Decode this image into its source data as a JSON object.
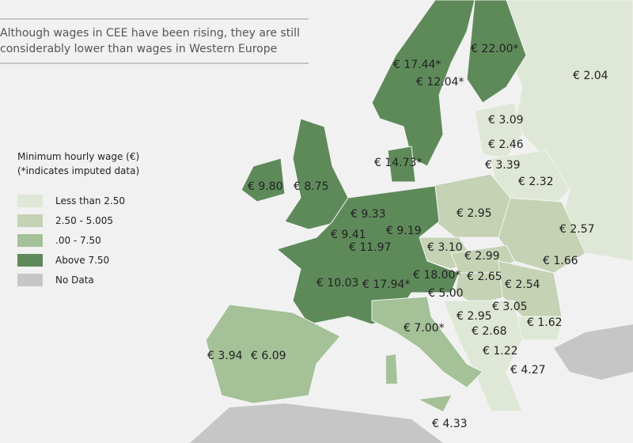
{
  "subtitle": [
    "Although wages in CEE have been rising, they are still",
    "considerably lower than wages in Western Europe"
  ],
  "legend": {
    "title": "Minimum hourly wage (€)",
    "note": "(*indicates imputed data)",
    "items": [
      {
        "label": "Less than 2.50",
        "color": "#dfe7d6"
      },
      {
        "label": "2.50 - 5.005",
        "color": "#c5d2b4"
      },
      {
        "label": ".00 - 7.50",
        "color": "#a4c197"
      },
      {
        "label": "Above 7.50",
        "color": "#5e8a5a"
      },
      {
        "label": "No Data",
        "color": "#c6c6c6"
      }
    ]
  },
  "labels": [
    "€ 22.00*",
    "€ 17.44*",
    "€ 12.04*",
    "€ 2.04",
    "€ 3.09",
    "€ 2.46",
    "€ 14.73*",
    "€ 3.39",
    "€ 2.32",
    "€ 9.80",
    "€ 8.75",
    "€ 9.33",
    "€ 2.95",
    "€ 2.57",
    "€ 9.41",
    "€ 9.19",
    "€ 11.97",
    "€ 3.10",
    "€ 2.99",
    "€ 1.66",
    "€ 18.00*",
    "€ 2.65",
    "€ 10.03",
    "€ 17.94*",
    "€ 2.54",
    "€ 5.00",
    "€ 3.05",
    "€ 2.95",
    "€ 1.62",
    "€ 7.00*",
    "€ 2.68",
    "€ 3.94",
    "€ 6.09",
    "€ 1.22",
    "€ 4.27",
    "€ 4.33"
  ]
}
